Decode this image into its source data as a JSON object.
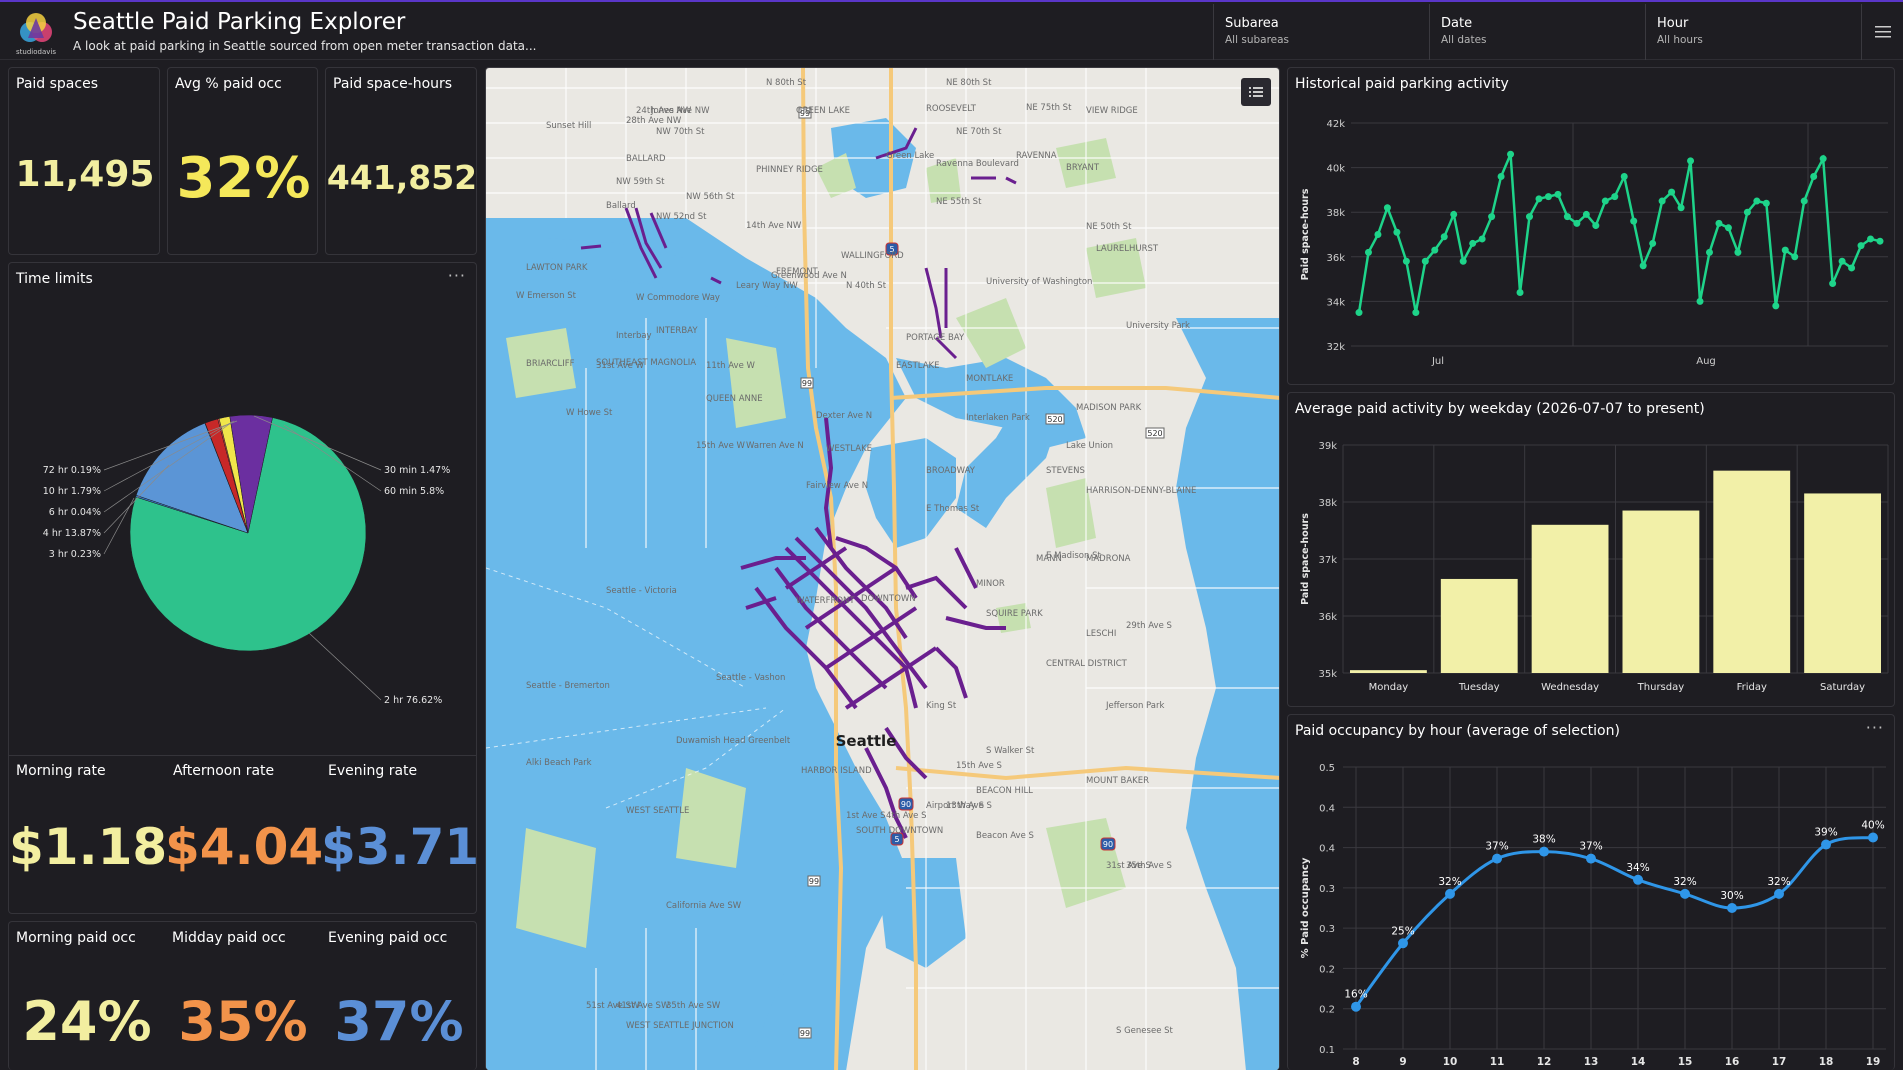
{
  "header": {
    "title": "Seattle Paid Parking Explorer",
    "subtitle": "A look at paid parking in Seattle sourced from open meter transaction data...",
    "logo_text": "studiodavis",
    "filters": [
      {
        "label": "Subarea",
        "value": "All subareas"
      },
      {
        "label": "Date",
        "value": "All dates"
      },
      {
        "label": "Hour",
        "value": "All hours"
      }
    ]
  },
  "kpis": [
    {
      "label": "Paid spaces",
      "value": "11,495",
      "color": "#f2eea0"
    },
    {
      "label": "Avg % paid occ",
      "value": "32%",
      "color": "#f5e85a"
    },
    {
      "label": "Paid space-hours",
      "value": "441,852",
      "color": "#f2eea0"
    }
  ],
  "time_limits": {
    "title": "Time limits",
    "chart_data": {
      "type": "pie",
      "slices": [
        {
          "label": "2 hr",
          "value": 76.62,
          "color": "#2ec28c"
        },
        {
          "label": "3 hr",
          "value": 0.23,
          "color": "#3a7ac4"
        },
        {
          "label": "4 hr",
          "value": 13.87,
          "color": "#5b95d6"
        },
        {
          "label": "6 hr",
          "value": 0.04,
          "color": "#8ab2e0"
        },
        {
          "label": "10 hr",
          "value": 1.79,
          "color": "#c72828"
        },
        {
          "label": "72 hr",
          "value": 0.19,
          "color": "#e04a4a"
        },
        {
          "label": "30 min",
          "value": 1.47,
          "color": "#f0e54a"
        },
        {
          "label": "60 min",
          "value": 5.8,
          "color": "#6b2fa0"
        }
      ],
      "labels": [
        "72 hr 0.19%",
        "10 hr 1.79%",
        "6 hr 0.04%",
        "4 hr 13.87%",
        "3 hr 0.23%",
        "30 min 1.47%",
        "60 min 5.8%",
        "2 hr 76.62%"
      ]
    }
  },
  "rates": [
    {
      "label": "Morning rate",
      "value": "$1.18",
      "color": "#f2eea0"
    },
    {
      "label": "Afternoon rate",
      "value": "$4.04",
      "color": "#f2934a"
    },
    {
      "label": "Evening rate",
      "value": "$3.71",
      "color": "#5b8fd6"
    }
  ],
  "occ": [
    {
      "label": "Morning paid occ",
      "value": "24%",
      "color": "#f2eea0"
    },
    {
      "label": "Midday paid occ",
      "value": "35%",
      "color": "#f2934a"
    },
    {
      "label": "Evening paid occ",
      "value": "37%",
      "color": "#5b8fd6"
    }
  ],
  "map": {
    "city_label": "Seattle",
    "labels": [
      "N 80th St",
      "NW 70th St",
      "NW 59th St",
      "NW 56th St",
      "NW 52nd St",
      "BALLARD",
      "GREEN LAKE",
      "ROOSEVELT",
      "NE 80th St",
      "NE 75th St",
      "NE 70th St",
      "VIEW RIDGE",
      "RAVENNA",
      "BRYANT",
      "NE 55th St",
      "NE 50th St",
      "LAURELHURST",
      "WALLINGFORD",
      "FREMONT",
      "PHINNEY RIDGE",
      "N 40th St",
      "University of Washington",
      "LAWTON PARK",
      "W Emerson St",
      "INTERBAY",
      "SOUTHEAST MAGNOLIA",
      "BRIARCLIFF",
      "QUEEN ANNE",
      "W Howe St",
      "PORTAGE BAY",
      "EASTLAKE",
      "MONTLAKE",
      "Interlaken Park",
      "MADISON PARK",
      "STEVENS",
      "BROADWAY",
      "E Thomas St",
      "E Madison St",
      "HARRISON-DENNY-BLAINE",
      "MANN",
      "MADRONA",
      "MINOR",
      "SQUIRE PARK",
      "LESCHI",
      "CENTRAL DISTRICT",
      "Seattle - Victoria",
      "Seattle - Bremerton",
      "Seattle - Vashon",
      "Duwamish Head Greenbelt",
      "Alki Beach Park",
      "WEST SEATTLE",
      "HARBOR ISLAND",
      "SOUTH DOWNTOWN",
      "BEACON HILL",
      "MOUNT BAKER",
      "S Walker St",
      "S Genesee St",
      "WEST SEATTLE JUNCTION",
      "WATERFRONT",
      "DOWNTOWN",
      "WESTLAKE",
      "Ravenna Boulevard",
      "W Commodore Way",
      "Leary Way NW",
      "Greenwood Ave N",
      "Dexter Ave N",
      "Warren Ave N",
      "15th Ave W",
      "11th Ave W",
      "31st Ave W",
      "28th Ave NW",
      "24th Ave NW",
      "Jones Ave NW",
      "29th Ave S",
      "1st Ave S",
      "4th Ave S",
      "Airport Way S",
      "13th Ave S",
      "15th Ave S",
      "Beacon Ave S",
      "31st Ave S",
      "35th Ave S",
      "51st Ave SW",
      "41st Ave SW",
      "35th Ave SW",
      "14th Ave NW",
      "California Ave SW",
      "Fairview Ave N",
      "Ballard",
      "Lake Union",
      "Green Lake",
      "University Park",
      "Sunset Hill",
      "Jefferson Park",
      "Interbay",
      "King St"
    ],
    "shields": [
      "99",
      "5",
      "520",
      "90"
    ],
    "layers_icon": "list-icon"
  },
  "historical": {
    "title": "Historical paid parking activity",
    "chart_data": {
      "type": "line",
      "ylabel": "Paid space-hours",
      "ylim": [
        32000,
        42000
      ],
      "yticks": [
        "32k",
        "34k",
        "36k",
        "38k",
        "40k",
        "42k"
      ],
      "xticks": [
        "Jul",
        "Aug"
      ],
      "color": "#1ed48a",
      "values": [
        33500,
        36200,
        37000,
        38200,
        37100,
        35800,
        33500,
        35800,
        36300,
        36900,
        37900,
        35800,
        36600,
        36800,
        37800,
        39600,
        40600,
        34400,
        37800,
        38600,
        38700,
        38800,
        37800,
        37500,
        37900,
        37400,
        38500,
        38700,
        39600,
        37600,
        35600,
        36600,
        38500,
        38900,
        38200,
        40300,
        34000,
        36200,
        37500,
        37300,
        36200,
        38000,
        38500,
        38400,
        33800,
        36300,
        36000,
        38500,
        39600,
        40400,
        34800,
        35800,
        35500,
        36500,
        36800,
        36700
      ]
    }
  },
  "weekday": {
    "title": "Average paid activity by weekday (2026-07-07 to present)",
    "chart_data": {
      "type": "bar",
      "ylabel": "Paid space-hours",
      "ylim": [
        35000,
        39000
      ],
      "yticks": [
        "35k",
        "36k",
        "37k",
        "38k",
        "39k"
      ],
      "categories": [
        "Monday",
        "Tuesday",
        "Wednesday",
        "Thursday",
        "Friday",
        "Saturday"
      ],
      "values": [
        35050,
        36650,
        37600,
        37850,
        38550,
        38150
      ],
      "color": "#f2f0a8"
    }
  },
  "hourly": {
    "title": "Paid occupancy by hour (average of selection)",
    "chart_data": {
      "type": "line",
      "ylabel": "% Paid occupancy",
      "ylim": [
        0.1,
        0.5
      ],
      "yticks": [
        "0.1",
        "0.2",
        "0.2",
        "0.3",
        "0.3",
        "0.4",
        "0.4",
        "0.5"
      ],
      "x": [
        8,
        9,
        10,
        11,
        12,
        13,
        14,
        15,
        16,
        17,
        18,
        19
      ],
      "values": [
        0.16,
        0.25,
        0.32,
        0.37,
        0.38,
        0.37,
        0.34,
        0.32,
        0.3,
        0.32,
        0.39,
        0.4
      ],
      "labels": [
        "16%",
        "25%",
        "32%",
        "37%",
        "38%",
        "37%",
        "34%",
        "32%",
        "30%",
        "32%",
        "39%",
        "40%"
      ],
      "color": "#2f96e8"
    }
  }
}
